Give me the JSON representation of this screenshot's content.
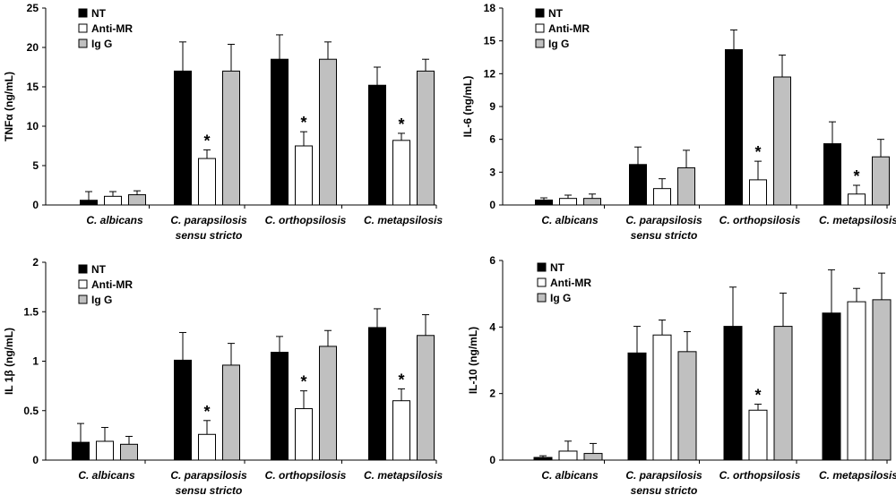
{
  "chart_data": [
    {
      "type": "bar",
      "id": "tnf",
      "ylabel": "TNFα (ng/mL)",
      "ylim": [
        0,
        25
      ],
      "yticks": [
        "0",
        "5",
        "10",
        "15",
        "20",
        "25"
      ],
      "categories": [
        "C. albicans",
        "C. parapsilosis|sensu stricto",
        "C. orthopsilosis",
        "C. metapsilosis"
      ],
      "series": [
        {
          "name": "NT",
          "color": "#000000",
          "values": [
            0.6,
            17.0,
            18.5,
            15.2
          ],
          "errors": [
            1.1,
            3.7,
            3.1,
            2.3
          ]
        },
        {
          "name": "Anti-MR",
          "color": "#ffffff",
          "values": [
            1.1,
            5.9,
            7.5,
            8.2
          ],
          "errors": [
            0.6,
            1.1,
            1.8,
            0.9
          ]
        },
        {
          "name": "Ig G",
          "color": "#c0c0c0",
          "values": [
            1.3,
            17.0,
            18.5,
            17.0
          ],
          "errors": [
            0.5,
            3.4,
            2.2,
            1.5
          ]
        }
      ],
      "annotations": [
        {
          "series": 1,
          "category": 1,
          "text": "*"
        },
        {
          "series": 1,
          "category": 2,
          "text": "*"
        },
        {
          "series": 1,
          "category": 3,
          "text": "*"
        }
      ]
    },
    {
      "type": "bar",
      "id": "il6",
      "ylabel": "IL-6 (ng/mL)",
      "ylim": [
        0,
        18
      ],
      "yticks": [
        "0",
        "3",
        "6",
        "9",
        "12",
        "15",
        "18"
      ],
      "categories": [
        "C. albicans",
        "C. parapsilosis|sensu stricto",
        "C. orthopsilosis",
        "C. metapsilosis"
      ],
      "series": [
        {
          "name": "NT",
          "color": "#000000",
          "values": [
            0.45,
            3.7,
            14.2,
            5.6
          ],
          "errors": [
            0.2,
            1.6,
            1.8,
            2.0
          ]
        },
        {
          "name": "Anti-MR",
          "color": "#ffffff",
          "values": [
            0.6,
            1.5,
            2.3,
            1.0
          ],
          "errors": [
            0.3,
            0.9,
            1.7,
            0.8
          ]
        },
        {
          "name": "Ig G",
          "color": "#c0c0c0",
          "values": [
            0.6,
            3.4,
            11.7,
            4.4
          ],
          "errors": [
            0.4,
            1.6,
            2.0,
            1.6
          ]
        }
      ],
      "annotations": [
        {
          "series": 1,
          "category": 2,
          "text": "*"
        },
        {
          "series": 1,
          "category": 3,
          "text": "*"
        }
      ]
    },
    {
      "type": "bar",
      "id": "il1b",
      "ylabel": "IL 1β (ng/mL)",
      "ylim": [
        0,
        2
      ],
      "yticks": [
        "0",
        "0.5",
        "1",
        "1.5",
        "2"
      ],
      "categories": [
        "C. albicans",
        "C. parapsilosis|sensu stricto",
        "C. orthopsilosis",
        "C. metapsilosis"
      ],
      "series": [
        {
          "name": "NT",
          "color": "#000000",
          "values": [
            0.18,
            1.01,
            1.09,
            1.34
          ],
          "errors": [
            0.19,
            0.28,
            0.16,
            0.19
          ]
        },
        {
          "name": "Anti-MR",
          "color": "#ffffff",
          "values": [
            0.19,
            0.26,
            0.52,
            0.6
          ],
          "errors": [
            0.14,
            0.14,
            0.18,
            0.12
          ]
        },
        {
          "name": "Ig G",
          "color": "#c0c0c0",
          "values": [
            0.16,
            0.96,
            1.15,
            1.26
          ],
          "errors": [
            0.08,
            0.22,
            0.16,
            0.21
          ]
        }
      ],
      "annotations": [
        {
          "series": 1,
          "category": 1,
          "text": "*"
        },
        {
          "series": 1,
          "category": 2,
          "text": "*"
        },
        {
          "series": 1,
          "category": 3,
          "text": "*"
        }
      ]
    },
    {
      "type": "bar",
      "id": "il10",
      "ylabel": "IL-10 (ng/mL)",
      "ylim": [
        0,
        6
      ],
      "yticks": [
        "0",
        "2",
        "4",
        "6"
      ],
      "categories": [
        "C. albicans",
        "C. parapsilosis|sensu stricto",
        "C. orthopsilosis",
        "C. metapsilosis"
      ],
      "series": [
        {
          "name": "NT",
          "color": "#000000",
          "values": [
            0.08,
            3.22,
            4.02,
            4.42
          ],
          "errors": [
            0.05,
            0.8,
            1.18,
            1.3
          ]
        },
        {
          "name": "Anti-MR",
          "color": "#ffffff",
          "values": [
            0.27,
            3.76,
            1.5,
            4.76
          ],
          "errors": [
            0.3,
            0.45,
            0.18,
            0.4
          ]
        },
        {
          "name": "Ig G",
          "color": "#c0c0c0",
          "values": [
            0.2,
            3.26,
            4.02,
            4.82
          ],
          "errors": [
            0.3,
            0.6,
            1.0,
            0.8
          ]
        }
      ],
      "annotations": [
        {
          "series": 1,
          "category": 2,
          "text": "*"
        }
      ]
    }
  ]
}
